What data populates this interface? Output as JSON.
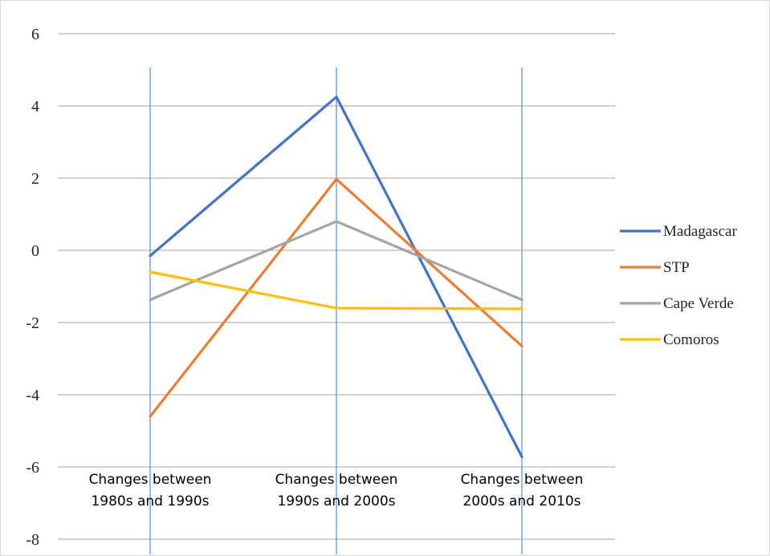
{
  "chart_data": {
    "type": "line",
    "title": "",
    "xlabel": "",
    "ylabel": "",
    "categories": [
      [
        "Changes between",
        "1980s and 1990s"
      ],
      [
        "Changes between",
        "1990s and 2000s"
      ],
      [
        "Changes between",
        "2000s and 2010s"
      ]
    ],
    "ylim": [
      -8,
      6
    ],
    "yticks": [
      6,
      4,
      2,
      0,
      -2,
      -4,
      -6,
      -8
    ],
    "grid": true,
    "legend_position": "right",
    "series": [
      {
        "name": "Madagascar",
        "color": "#4472C4",
        "values": [
          -0.15,
          4.25,
          -5.72
        ]
      },
      {
        "name": "STP",
        "color": "#ED7D31",
        "values": [
          -4.6,
          1.97,
          -2.65
        ]
      },
      {
        "name": "Cape Verde",
        "color": "#A5A5A5",
        "values": [
          -1.37,
          0.8,
          -1.37
        ]
      },
      {
        "name": "Comoros",
        "color": "#FFC000",
        "values": [
          -0.6,
          -1.6,
          -1.62
        ]
      }
    ]
  }
}
